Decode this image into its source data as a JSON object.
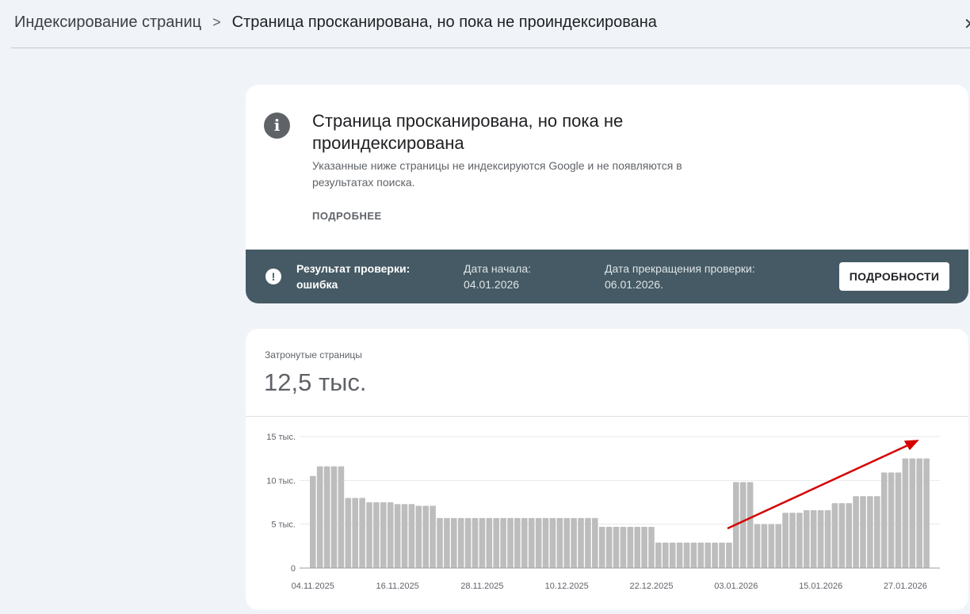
{
  "breadcrumb": {
    "parent": "Индексирование страниц",
    "separator": ">",
    "current": "Страница просканирована, но пока не проиндексирована",
    "close_icon": "close-icon"
  },
  "issue_card": {
    "icon": "info-icon",
    "title": "Страница просканирована, но пока не проиндексирована",
    "description": "Указанные ниже страницы не индексируются Google и не появляются в результатах поиска.",
    "learn_more": "ПОДРОБНЕЕ",
    "validation": {
      "icon": "exclamation-icon",
      "result": "Результат проверки: ошибка",
      "start_date": "Дата начала: 04.01.2026",
      "stop_date": "Дата прекращения проверки: 06.01.2026.",
      "details_button": "ПОДРОБНОСТИ",
      "banner_color": "#455a64"
    }
  },
  "affected": {
    "label": "Затронутые страницы",
    "value": "12,5 тыс."
  },
  "chart_data": {
    "type": "bar",
    "start_date": "04.11.2025",
    "x_tick_labels": [
      "04.11.2025",
      "16.11.2025",
      "28.11.2025",
      "10.12.2025",
      "22.12.2025",
      "03.01.2026",
      "15.01.2026",
      "27.01.2026"
    ],
    "y_tick_labels": [
      "0",
      "5 тыс.",
      "10 тыс.",
      "15 тыс."
    ],
    "ylim": [
      0,
      15000
    ],
    "grid": true,
    "bar_color": "#bdbdbd",
    "annotation": {
      "type": "arrow",
      "color": "#d50000",
      "meaning": "upward trend"
    },
    "values": [
      10500,
      11600,
      11600,
      11600,
      11600,
      8000,
      8000,
      8000,
      7500,
      7500,
      7500,
      7500,
      7300,
      7300,
      7300,
      7100,
      7100,
      7100,
      5700,
      5700,
      5700,
      5700,
      5700,
      5700,
      5700,
      5700,
      5700,
      5700,
      5700,
      5700,
      5700,
      5700,
      5700,
      5700,
      5700,
      5700,
      5700,
      5700,
      5700,
      5700,
      5700,
      4700,
      4700,
      4700,
      4700,
      4700,
      4700,
      4700,
      4700,
      2900,
      2900,
      2900,
      2900,
      2900,
      2900,
      2900,
      2900,
      2900,
      2900,
      2900,
      9800,
      9800,
      9800,
      5000,
      5000,
      5000,
      5000,
      6300,
      6300,
      6300,
      6600,
      6600,
      6600,
      6600,
      7400,
      7400,
      7400,
      8200,
      8200,
      8200,
      8200,
      10900,
      10900,
      10900,
      12500,
      12500,
      12500,
      12500
    ]
  }
}
